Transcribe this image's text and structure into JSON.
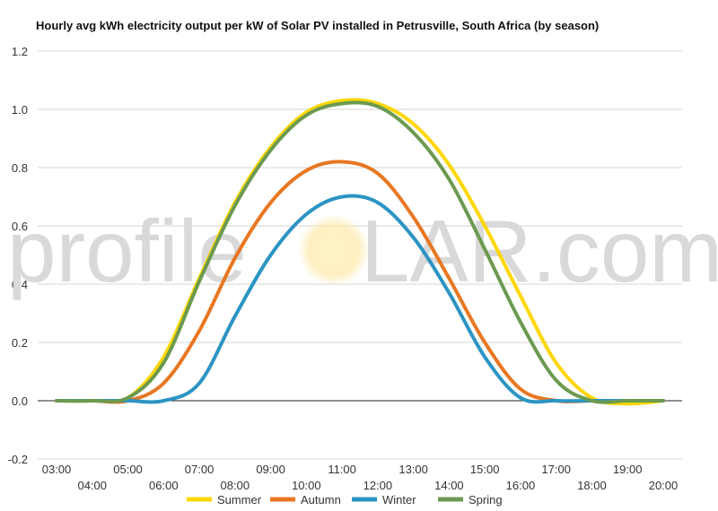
{
  "chart_data": {
    "type": "line",
    "title": "Hourly avg kWh electricity output per kW of Solar PV installed in Petrusville, South Africa (by season)",
    "xlabel": "",
    "ylabel": "",
    "ylim": [
      -0.2,
      1.2
    ],
    "yticks": [
      "-0.2",
      "0.0",
      "0.2",
      "0.4",
      "0.6",
      "0.8",
      "1.0",
      "1.2"
    ],
    "xlim": [
      3,
      20
    ],
    "xticks": [
      "03:00",
      "04:00",
      "05:00",
      "06:00",
      "07:00",
      "08:00",
      "09:00",
      "10:00",
      "11:00",
      "12:00",
      "13:00",
      "14:00",
      "15:00",
      "16:00",
      "17:00",
      "18:00",
      "19:00",
      "20:00"
    ],
    "grid": true,
    "legend": "bottom",
    "x": [
      3,
      4,
      5,
      6,
      7,
      8,
      9,
      10,
      11,
      12,
      13,
      14,
      15,
      16,
      17,
      18,
      19,
      20
    ],
    "series": [
      {
        "name": "Summer",
        "color": "#FFD700",
        "values": [
          0,
          0,
          0.01,
          0.15,
          0.42,
          0.68,
          0.87,
          0.99,
          1.03,
          1.02,
          0.95,
          0.81,
          0.6,
          0.36,
          0.13,
          0.01,
          -0.01,
          0
        ]
      },
      {
        "name": "Autumn",
        "color": "#E87722",
        "values": [
          0,
          0,
          0,
          0.06,
          0.24,
          0.49,
          0.68,
          0.79,
          0.82,
          0.78,
          0.63,
          0.42,
          0.2,
          0.04,
          0,
          0,
          0,
          0
        ]
      },
      {
        "name": "Winter",
        "color": "#2B94C3",
        "values": [
          0,
          0,
          0,
          0,
          0.06,
          0.29,
          0.5,
          0.64,
          0.7,
          0.68,
          0.56,
          0.37,
          0.15,
          0.01,
          0,
          0,
          0,
          0
        ]
      },
      {
        "name": "Spring",
        "color": "#6B9A50",
        "values": [
          0,
          0,
          0.01,
          0.13,
          0.41,
          0.67,
          0.86,
          0.98,
          1.02,
          1.01,
          0.92,
          0.76,
          0.52,
          0.27,
          0.07,
          0,
          0,
          0
        ]
      }
    ]
  },
  "watermark": {
    "left": "profile",
    "sun_letter": "S",
    "right": "LAR.com",
    "color": "#d9d9d9"
  }
}
